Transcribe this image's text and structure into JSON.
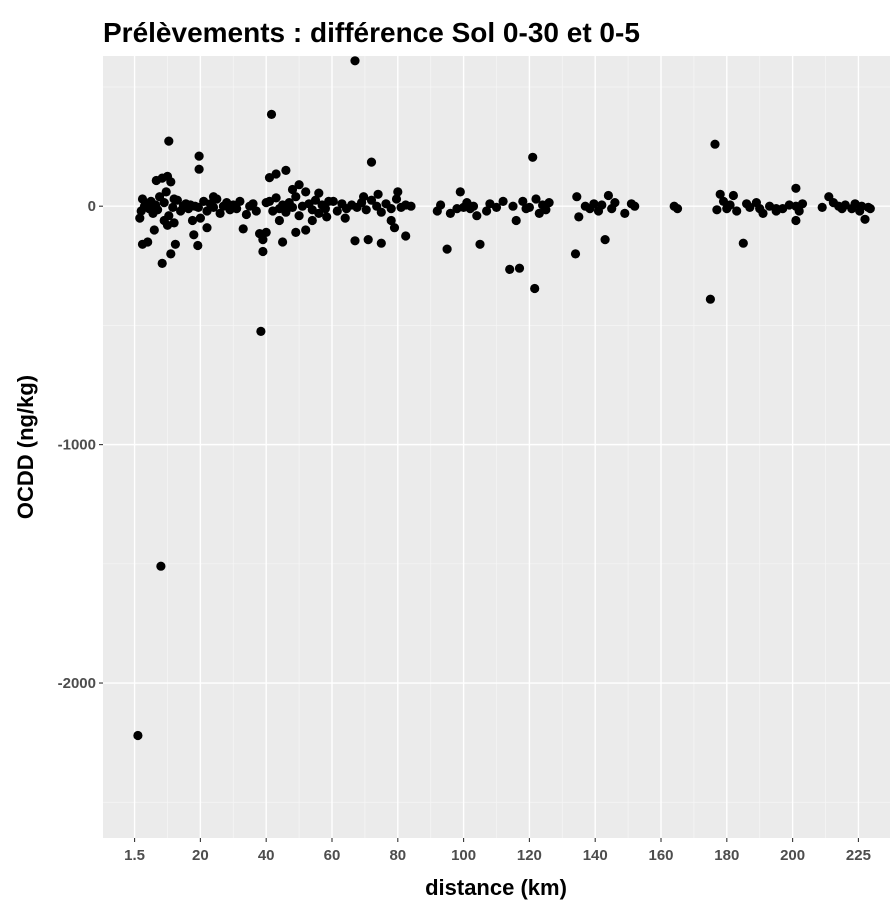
{
  "chart_data": {
    "type": "scatter",
    "title": "Prélèvements : différence Sol 0-30 et 0-5",
    "xlabel": "distance (km)",
    "ylabel": "OCDD (ng/kg)",
    "x_ticks": [
      {
        "label": "1.5",
        "pos": 1
      },
      {
        "label": "20",
        "pos": 2
      },
      {
        "label": "40",
        "pos": 3
      },
      {
        "label": "60",
        "pos": 4
      },
      {
        "label": "80",
        "pos": 5
      },
      {
        "label": "100",
        "pos": 6
      },
      {
        "label": "120",
        "pos": 7
      },
      {
        "label": "140",
        "pos": 8
      },
      {
        "label": "160",
        "pos": 9
      },
      {
        "label": "180",
        "pos": 10
      },
      {
        "label": "200",
        "pos": 11
      },
      {
        "label": "225",
        "pos": 12
      }
    ],
    "xlim": [
      0.52,
      12.48
    ],
    "y_ticks": [
      {
        "label": "-2000",
        "value": -2000
      },
      {
        "label": "-1000",
        "value": -1000
      },
      {
        "label": "0",
        "value": 0
      }
    ],
    "y_minor": [
      -2500,
      -1500,
      -500,
      500
    ],
    "ylim": [
      -2650,
      630
    ],
    "grid": true,
    "legend": "none",
    "points": [
      [
        1.05,
        -2220
      ],
      [
        1.4,
        -1510
      ],
      [
        1.52,
        273
      ],
      [
        1.5,
        125
      ],
      [
        1.42,
        118
      ],
      [
        1.33,
        108
      ],
      [
        1.55,
        102
      ],
      [
        1.48,
        60
      ],
      [
        1.38,
        40
      ],
      [
        1.6,
        30
      ],
      [
        1.12,
        -160
      ],
      [
        1.2,
        -150
      ],
      [
        1.42,
        -240
      ],
      [
        1.55,
        -200
      ],
      [
        1.62,
        -160
      ],
      [
        1.3,
        -100
      ],
      [
        1.5,
        -80
      ],
      [
        1.1,
        -20
      ],
      [
        1.15,
        0
      ],
      [
        1.18,
        10
      ],
      [
        1.22,
        -10
      ],
      [
        1.25,
        20
      ],
      [
        1.28,
        -30
      ],
      [
        1.32,
        5
      ],
      [
        1.35,
        -15
      ],
      [
        1.45,
        15
      ],
      [
        1.52,
        -40
      ],
      [
        1.58,
        -5
      ],
      [
        1.65,
        25
      ],
      [
        1.7,
        -20
      ],
      [
        1.74,
        0
      ],
      [
        1.78,
        10
      ],
      [
        1.82,
        -10
      ],
      [
        1.85,
        5
      ],
      [
        1.88,
        -60
      ],
      [
        1.92,
        0
      ],
      [
        1.97,
        -5
      ],
      [
        1.08,
        -50
      ],
      [
        1.12,
        30
      ],
      [
        1.45,
        -60
      ],
      [
        1.6,
        -70
      ],
      [
        1.98,
        210
      ],
      [
        1.98,
        155
      ],
      [
        1.96,
        -165
      ],
      [
        1.9,
        -120
      ],
      [
        2.0,
        -50
      ],
      [
        2.05,
        20
      ],
      [
        2.1,
        -20
      ],
      [
        2.15,
        10
      ],
      [
        2.2,
        -5
      ],
      [
        2.25,
        30
      ],
      [
        2.3,
        -30
      ],
      [
        2.35,
        0
      ],
      [
        2.4,
        15
      ],
      [
        2.45,
        -15
      ],
      [
        2.5,
        5
      ],
      [
        2.55,
        -10
      ],
      [
        2.6,
        20
      ],
      [
        2.65,
        -95
      ],
      [
        2.7,
        -35
      ],
      [
        2.75,
        0
      ],
      [
        2.8,
        10
      ],
      [
        2.85,
        -20
      ],
      [
        2.9,
        -115
      ],
      [
        2.1,
        -90
      ],
      [
        2.2,
        40
      ],
      [
        2.92,
        -525
      ],
      [
        2.95,
        -190
      ],
      [
        2.95,
        -140
      ],
      [
        3.0,
        -110
      ],
      [
        3.05,
        20
      ],
      [
        3.1,
        -20
      ],
      [
        3.15,
        35
      ],
      [
        3.2,
        -10
      ],
      [
        3.25,
        5
      ],
      [
        3.3,
        -25
      ],
      [
        3.35,
        15
      ],
      [
        3.4,
        -5
      ],
      [
        3.45,
        40
      ],
      [
        3.5,
        -40
      ],
      [
        3.55,
        0
      ],
      [
        3.05,
        120
      ],
      [
        3.15,
        135
      ],
      [
        3.3,
        150
      ],
      [
        3.4,
        70
      ],
      [
        3.25,
        -150
      ],
      [
        3.45,
        -110
      ],
      [
        3.6,
        -100
      ],
      [
        3.65,
        10
      ],
      [
        3.7,
        -15
      ],
      [
        3.75,
        25
      ],
      [
        3.8,
        -30
      ],
      [
        3.85,
        5
      ],
      [
        3.9,
        -10
      ],
      [
        3.95,
        20
      ],
      [
        3.2,
        -60
      ],
      [
        3.5,
        90
      ],
      [
        3.6,
        60
      ],
      [
        3.7,
        -60
      ],
      [
        3.8,
        55
      ],
      [
        3.92,
        -45
      ],
      [
        3.0,
        15
      ],
      [
        3.35,
        -5
      ],
      [
        4.35,
        610
      ],
      [
        3.08,
        385
      ],
      [
        4.6,
        185
      ],
      [
        4.35,
        -145
      ],
      [
        4.55,
        -140
      ],
      [
        4.75,
        -155
      ],
      [
        4.95,
        -90
      ],
      [
        5.12,
        -125
      ],
      [
        4.02,
        20
      ],
      [
        4.08,
        -20
      ],
      [
        4.15,
        10
      ],
      [
        4.22,
        -10
      ],
      [
        4.3,
        5
      ],
      [
        4.38,
        -5
      ],
      [
        4.45,
        15
      ],
      [
        4.52,
        -15
      ],
      [
        4.6,
        25
      ],
      [
        4.68,
        0
      ],
      [
        4.75,
        -25
      ],
      [
        4.82,
        10
      ],
      [
        4.9,
        -10
      ],
      [
        4.98,
        30
      ],
      [
        5.05,
        -5
      ],
      [
        5.12,
        5
      ],
      [
        5.2,
        0
      ],
      [
        4.48,
        40
      ],
      [
        4.7,
        50
      ],
      [
        4.9,
        -60
      ],
      [
        4.2,
        -50
      ],
      [
        5.0,
        60
      ],
      [
        5.6,
        -20
      ],
      [
        5.65,
        5
      ],
      [
        5.75,
        -180
      ],
      [
        5.8,
        -30
      ],
      [
        5.95,
        60
      ],
      [
        6.0,
        -5
      ],
      [
        6.05,
        15
      ],
      [
        6.1,
        -10
      ],
      [
        6.15,
        0
      ],
      [
        6.25,
        -160
      ],
      [
        6.35,
        -20
      ],
      [
        6.4,
        10
      ],
      [
        6.5,
        -5
      ],
      [
        6.6,
        20
      ],
      [
        5.9,
        -10
      ],
      [
        6.2,
        -40
      ],
      [
        6.7,
        -265
      ],
      [
        6.85,
        -260
      ],
      [
        6.9,
        20
      ],
      [
        6.95,
        -10
      ],
      [
        7.05,
        205
      ],
      [
        7.08,
        -345
      ],
      [
        7.1,
        30
      ],
      [
        7.15,
        -30
      ],
      [
        7.2,
        5
      ],
      [
        7.25,
        -15
      ],
      [
        7.3,
        15
      ],
      [
        6.8,
        -60
      ],
      [
        6.75,
        0
      ],
      [
        7.0,
        -5
      ],
      [
        7.7,
        -200
      ],
      [
        7.72,
        40
      ],
      [
        7.75,
        -45
      ],
      [
        7.85,
        0
      ],
      [
        7.92,
        -10
      ],
      [
        7.98,
        10
      ],
      [
        8.05,
        -20
      ],
      [
        8.1,
        5
      ],
      [
        8.15,
        -140
      ],
      [
        8.2,
        45
      ],
      [
        8.25,
        -10
      ],
      [
        8.3,
        15
      ],
      [
        8.45,
        -30
      ],
      [
        8.55,
        10
      ],
      [
        8.6,
        0
      ],
      [
        9.2,
        0
      ],
      [
        9.25,
        -10
      ],
      [
        9.75,
        -390
      ],
      [
        9.82,
        260
      ],
      [
        9.9,
        50
      ],
      [
        9.95,
        20
      ],
      [
        10.0,
        -10
      ],
      [
        10.05,
        5
      ],
      [
        10.1,
        45
      ],
      [
        10.15,
        -20
      ],
      [
        10.25,
        -155
      ],
      [
        10.3,
        10
      ],
      [
        10.35,
        -5
      ],
      [
        10.45,
        15
      ],
      [
        10.55,
        -30
      ],
      [
        10.65,
        0
      ],
      [
        10.75,
        -20
      ],
      [
        10.85,
        -10
      ],
      [
        10.95,
        5
      ],
      [
        11.05,
        0
      ],
      [
        11.1,
        -20
      ],
      [
        11.15,
        10
      ],
      [
        9.85,
        -15
      ],
      [
        10.5,
        -10
      ],
      [
        10.75,
        -10
      ],
      [
        11.05,
        75
      ],
      [
        11.05,
        -60
      ],
      [
        11.45,
        -5
      ],
      [
        11.55,
        40
      ],
      [
        11.62,
        15
      ],
      [
        11.7,
        0
      ],
      [
        11.8,
        5
      ],
      [
        11.9,
        -10
      ],
      [
        11.95,
        10
      ],
      [
        12.02,
        -20
      ],
      [
        11.75,
        -10
      ],
      [
        12.05,
        0
      ],
      [
        12.1,
        -55
      ],
      [
        12.15,
        -5
      ],
      [
        12.18,
        -10
      ]
    ]
  }
}
